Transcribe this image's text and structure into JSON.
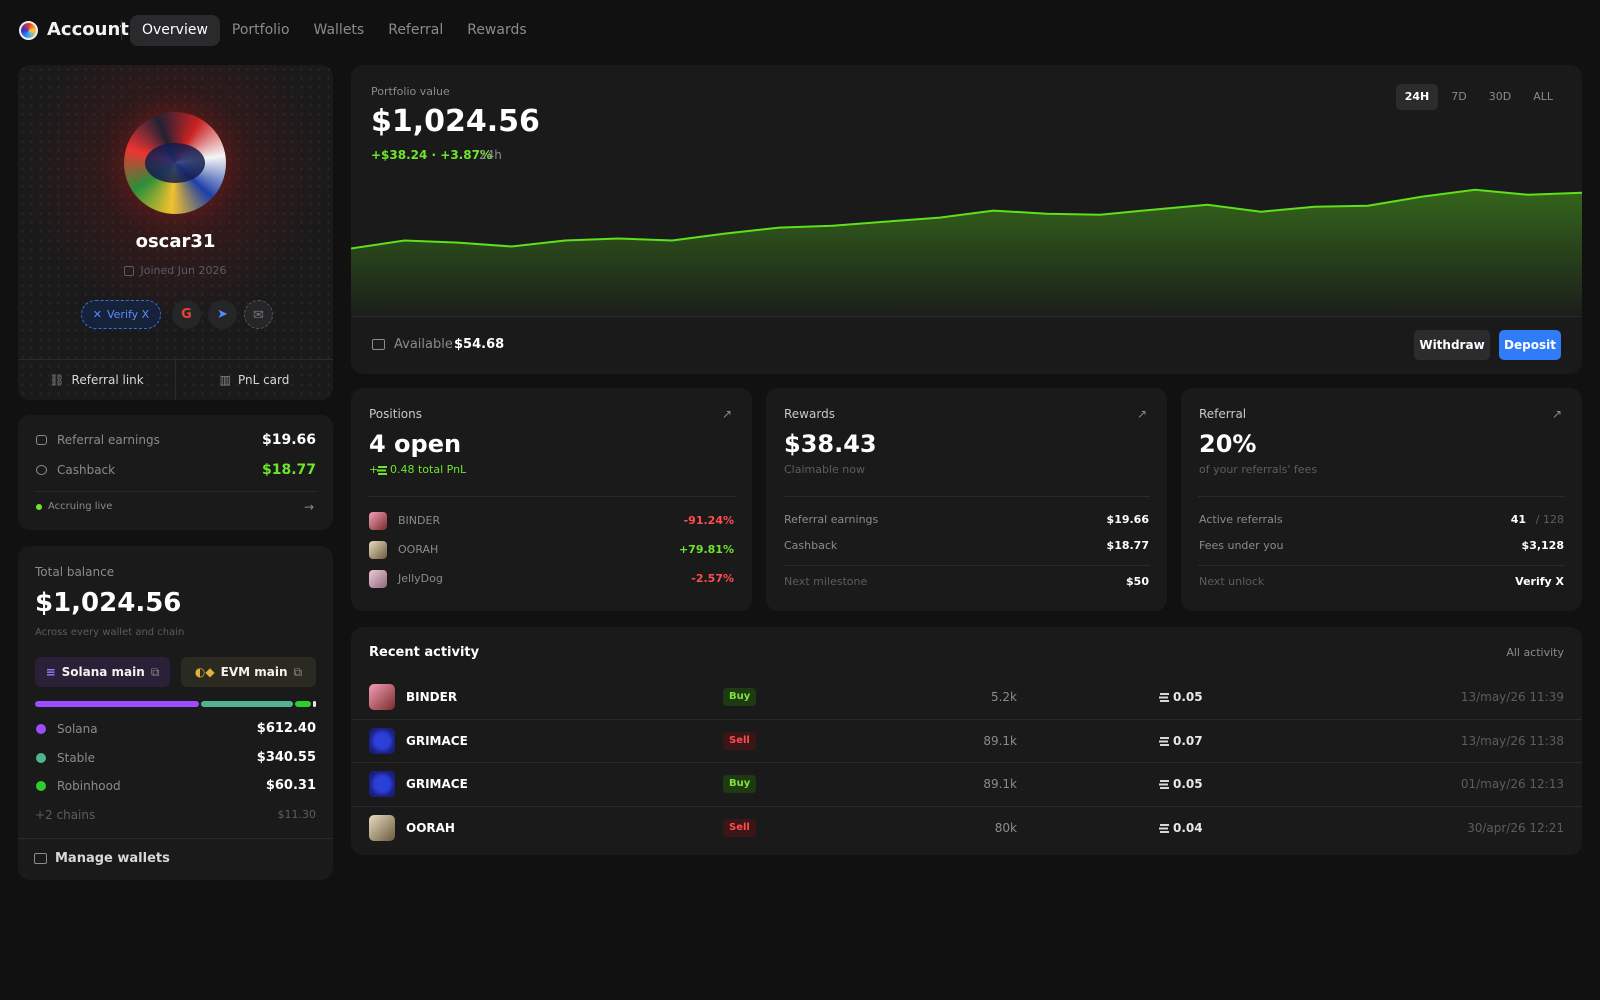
{
  "nav": {
    "brand": "Account",
    "tabs": [
      "Overview",
      "Portfolio",
      "Wallets",
      "Referral",
      "Rewards"
    ]
  },
  "profile": {
    "username": "oscar31",
    "joined": "Joined Jun 2026",
    "verify": "Verify X",
    "actions": [
      "Referral link",
      "PnL card"
    ]
  },
  "earnings": {
    "rows": [
      {
        "label": "Referral earnings",
        "value": "$19.66"
      },
      {
        "label": "Cashback",
        "value": "$18.77"
      }
    ],
    "status": "Accruing live"
  },
  "balance": {
    "label": "Total balance",
    "value": "$1,024.56",
    "sub": "Across every wallet and chain",
    "wallets": [
      "Solana main",
      "EVM main"
    ],
    "chains": {
      "type": "bar",
      "categories": [
        "Solana",
        "Stable",
        "Robinhood",
        "+2 chains"
      ],
      "values": [
        612.4,
        340.55,
        60.31,
        11.3
      ],
      "value_labels": [
        "$612.40",
        "$340.55",
        "$60.31",
        "$11.30"
      ],
      "colors": [
        "#9b4dff",
        "#4fb58c",
        "#2ecc2e",
        "#e8e8e8"
      ]
    },
    "manage": "Manage wallets"
  },
  "portfolio": {
    "label": "Portfolio value",
    "value": "$1,024.56",
    "change": "+$38.24 · +3.87%",
    "period": "24h",
    "ranges": [
      "24H",
      "7D",
      "30D",
      "ALL"
    ],
    "available_label": "Available",
    "available": "$54.68",
    "buttons": [
      "Withdraw",
      "Deposit"
    ],
    "chart": {
      "type": "area",
      "color": "#5ee01a",
      "values": [
        986.3,
        991.8,
        990.4,
        987.7,
        991.8,
        993.2,
        991.8,
        996.6,
        1000.7,
        1002.0,
        1004.8,
        1007.5,
        1012.3,
        1010.2,
        1009.5,
        1013.0,
        1016.4,
        1011.6,
        1015.0,
        1015.7,
        1021.8,
        1026.6,
        1023.2,
        1024.6
      ],
      "ylim": [
        940,
        1045
      ]
    }
  },
  "cards": [
    {
      "title": "Positions",
      "value": "4 open",
      "sign": "+",
      "sub": "0.48 total PnL",
      "rows": [
        {
          "name": "BINDER",
          "value": "-91.24%"
        },
        {
          "name": "OORAH",
          "value": "+79.81%"
        },
        {
          "name": "JellyDog",
          "value": "-2.57%"
        }
      ]
    },
    {
      "title": "Rewards",
      "value": "$38.43",
      "sub": "Claimable now",
      "rows": [
        {
          "label": "Referral earnings",
          "value": "$19.66"
        },
        {
          "label": "Cashback",
          "value": "$18.77"
        }
      ],
      "footer": {
        "label": "Next milestone",
        "value": "$50"
      }
    },
    {
      "title": "Referral",
      "value": "20%",
      "sub": "of your referrals' fees",
      "rows": [
        {
          "label": "Active referrals",
          "value": "41",
          "extra": "/ 128"
        },
        {
          "label": "Fees under you",
          "value": "$3,128"
        }
      ],
      "footer": {
        "label": "Next unlock",
        "value": "Verify X"
      }
    }
  ],
  "activity": {
    "title": "Recent activity",
    "link": "All activity",
    "rows": [
      {
        "token": "BINDER",
        "side": "Buy",
        "amount": "5.2k",
        "sol": "0.05",
        "time": "13/may/26 11:39"
      },
      {
        "token": "GRIMACE",
        "side": "Sell",
        "amount": "89.1k",
        "sol": "0.07",
        "time": "13/may/26 11:38"
      },
      {
        "token": "GRIMACE",
        "side": "Buy",
        "amount": "89.1k",
        "sol": "0.05",
        "time": "01/may/26 12:13"
      },
      {
        "token": "OORAH",
        "side": "Sell",
        "amount": "80k",
        "sol": "0.04",
        "time": "30/apr/26 12:21"
      }
    ]
  }
}
